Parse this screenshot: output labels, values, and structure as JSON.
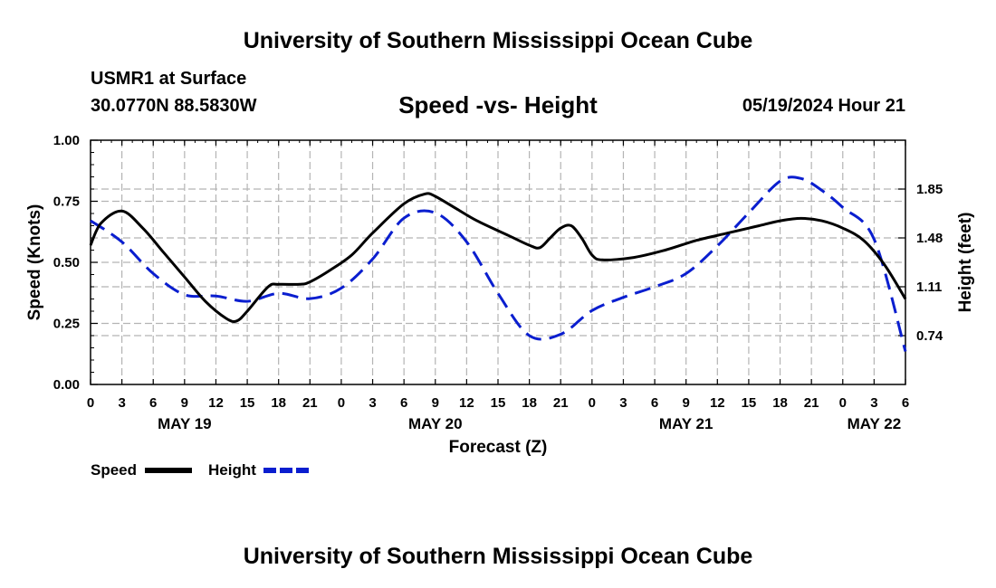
{
  "header": {
    "title": "University of Southern Mississippi Ocean Cube",
    "station": "USMR1 at Surface",
    "coords": "30.0770N  88.5830W",
    "subtitle": "Speed -vs- Height",
    "datetime": "05/19/2024 Hour 21"
  },
  "footer": {
    "title": "University of Southern Mississippi Ocean Cube"
  },
  "colors": {
    "speed": "#000000",
    "height": "#0a1ecf",
    "grid": "#b4b4b4"
  },
  "chart_data": {
    "type": "line",
    "title": "Speed -vs- Height",
    "xlabel": "Forecast (Z)",
    "ylabel": "Speed (Knots)",
    "y2label": "Height (feet)",
    "grid": true,
    "xlim": [
      0,
      78
    ],
    "ylim": [
      0,
      1
    ],
    "y2lim": [
      0.37,
      2.22
    ],
    "x_ticks": [
      0,
      3,
      6,
      9,
      12,
      15,
      18,
      21,
      24,
      27,
      30,
      33,
      36,
      39,
      42,
      45,
      48,
      51,
      54,
      57,
      60,
      63,
      66,
      69,
      72,
      75,
      78
    ],
    "x_tick_labels": [
      "0",
      "3",
      "6",
      "9",
      "12",
      "15",
      "18",
      "21",
      "0",
      "3",
      "6",
      "9",
      "12",
      "15",
      "18",
      "21",
      "0",
      "3",
      "6",
      "9",
      "12",
      "15",
      "18",
      "21",
      "0",
      "3",
      "6"
    ],
    "date_labels": [
      {
        "x": 9,
        "label": "MAY 19"
      },
      {
        "x": 33,
        "label": "MAY 20"
      },
      {
        "x": 57,
        "label": "MAY 21"
      },
      {
        "x": 75,
        "label": "MAY 22"
      }
    ],
    "y_ticks": [
      0,
      0.25,
      0.5,
      0.75,
      1.0
    ],
    "y_tick_labels": [
      "0.00",
      "0.25",
      "0.50",
      "0.75",
      "1.00"
    ],
    "y2_ticks": [
      0.74,
      1.11,
      1.48,
      1.85
    ],
    "y2_tick_labels": [
      "0.74",
      "1.11",
      "1.48",
      "1.85"
    ],
    "legend": [
      {
        "name": "Speed",
        "style": "solid"
      },
      {
        "name": "Height",
        "style": "dashed"
      }
    ],
    "series": [
      {
        "name": "Speed",
        "axis": "left",
        "x": [
          0,
          1,
          3,
          5,
          7,
          9,
          11,
          13,
          14,
          15,
          17,
          18,
          20,
          21,
          23,
          25,
          27,
          30,
          32,
          33,
          35,
          37,
          40,
          42,
          43,
          44,
          45,
          46,
          47,
          48,
          49,
          52,
          55,
          58,
          61,
          63,
          64,
          66,
          68,
          70,
          72,
          74,
          76,
          78
        ],
        "values": [
          0.57,
          0.66,
          0.71,
          0.64,
          0.54,
          0.44,
          0.34,
          0.27,
          0.26,
          0.3,
          0.4,
          0.41,
          0.41,
          0.42,
          0.47,
          0.53,
          0.62,
          0.74,
          0.78,
          0.77,
          0.72,
          0.67,
          0.61,
          0.57,
          0.56,
          0.6,
          0.64,
          0.65,
          0.6,
          0.53,
          0.51,
          0.52,
          0.55,
          0.59,
          0.62,
          0.64,
          0.65,
          0.67,
          0.68,
          0.67,
          0.64,
          0.59,
          0.49,
          0.35
        ]
      },
      {
        "name": "Height",
        "axis": "right",
        "x": [
          0,
          3,
          6,
          9,
          12,
          15,
          18,
          21,
          24,
          27,
          30,
          33,
          36,
          39,
          42,
          45,
          48,
          51,
          54,
          57,
          60,
          63,
          66,
          68,
          70,
          72,
          75,
          78
        ],
        "values": [
          1.61,
          1.45,
          1.21,
          1.05,
          1.04,
          1.0,
          1.06,
          1.02,
          1.1,
          1.32,
          1.63,
          1.67,
          1.45,
          1.06,
          0.74,
          0.75,
          0.93,
          1.03,
          1.11,
          1.21,
          1.42,
          1.67,
          1.91,
          1.93,
          1.84,
          1.71,
          1.47,
          0.62
        ]
      }
    ]
  }
}
